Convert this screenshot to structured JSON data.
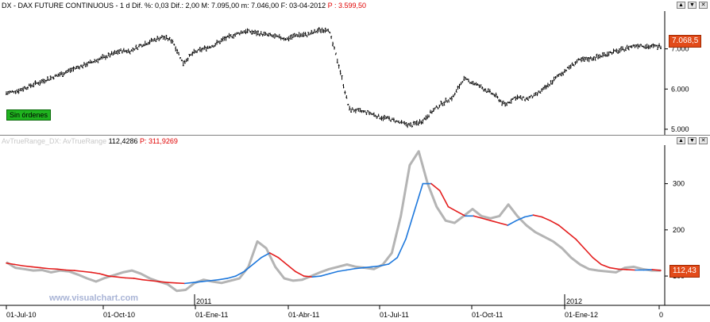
{
  "price_pane": {
    "title": "DX - DAX FUTURE CONTINUOUS - 1 d Dif. %: 0,03 Dif.: 2,00 M: 7.095,00 m: 7.046,00 F: 03-04-2012",
    "title_p": "P : 3.599,50",
    "price_badge": "7.068,5",
    "orders_label": "Sin órdenes",
    "yticks": [
      "5.000",
      "6.000",
      "7.000"
    ]
  },
  "indicator_pane": {
    "name": "AvTrueRange_DX: AvTrueRange",
    "value": "112,4286",
    "p_value": "P: 311,9269",
    "value_badge": "112,43",
    "yticks": [
      "100",
      "200",
      "300"
    ],
    "watermark": "www.visualchart.com"
  },
  "window_buttons": {
    "up": "▲",
    "down": "▼",
    "close": "✕"
  },
  "x_axis": {
    "dates": [
      "01-Jul-10",
      "01-Oct-10",
      "01-Ene-11",
      "01-Abr-11",
      "01-Jul-11",
      "01-Oct-11",
      "01-Ene-12",
      "0"
    ],
    "years": [
      "2011",
      "2012"
    ]
  },
  "colors": {
    "bars": "#000000",
    "atr": "#b4b4b4",
    "ma_up": "#1e78dc",
    "ma_down": "#e41e1e",
    "badge": "#e24b1a",
    "orders": "#1fb31f"
  },
  "chart_data": [
    {
      "type": "line",
      "series": [
        {
          "values": [
            5900,
            5950,
            6050,
            6150,
            6250,
            6350,
            6450,
            6550,
            6650,
            6750,
            6850,
            6950,
            6950,
            7100,
            7200,
            7300,
            7200,
            6650,
            6900,
            7000,
            7100,
            7250,
            7350,
            7450,
            7400,
            7350,
            7300,
            7250,
            7350,
            7350,
            7450,
            7500,
            6600,
            5500,
            5450,
            5400,
            5300,
            5250,
            5150,
            5100,
            5200,
            5450,
            5650,
            5800,
            6250,
            6150,
            6000,
            5850,
            5600,
            5800,
            5750,
            5850,
            6050,
            6300,
            6500,
            6700,
            6750,
            6800,
            6900,
            6950,
            7050,
            7100,
            7050,
            7068.5
          ]
        }
      ],
      "ylim": [
        4900,
        7900
      ]
    },
    {
      "type": "line",
      "series": [
        {
          "values": [
            130,
            118,
            115,
            112,
            113,
            108,
            112,
            110,
            103,
            95,
            88,
            96,
            102,
            108,
            112,
            105,
            95,
            88,
            82,
            68,
            70,
            85,
            92,
            88,
            85,
            90,
            95,
            120,
            175,
            160,
            120,
            95,
            90,
            92,
            100,
            108,
            115,
            120,
            125,
            120,
            118,
            115,
            125,
            150,
            230,
            340,
            370,
            300,
            250,
            220,
            215,
            230,
            245,
            230,
            225,
            230,
            255,
            230,
            210,
            195,
            185,
            175,
            160,
            140,
            125,
            115,
            112,
            110,
            108,
            118,
            120,
            115,
            112,
            112
          ]
        },
        {
          "values": [
            128,
            125,
            122,
            120,
            118,
            116,
            115,
            113,
            112,
            110,
            108,
            105,
            100,
            98,
            96,
            95,
            92,
            90,
            88,
            86,
            85,
            84,
            86,
            88,
            90,
            92,
            95,
            100,
            110,
            125,
            140,
            150,
            140,
            125,
            110,
            100,
            98,
            100,
            105,
            110,
            113,
            116,
            118,
            120,
            122,
            126,
            140,
            180,
            240,
            300,
            300,
            285,
            250,
            240,
            230,
            230,
            225,
            220,
            215,
            210,
            220,
            228,
            232,
            228,
            220,
            210,
            195,
            180,
            160,
            140,
            125,
            118,
            115,
            114,
            113,
            113,
            114,
            112
          ]
        }
      ],
      "ylim": [
        40,
        380
      ]
    }
  ]
}
